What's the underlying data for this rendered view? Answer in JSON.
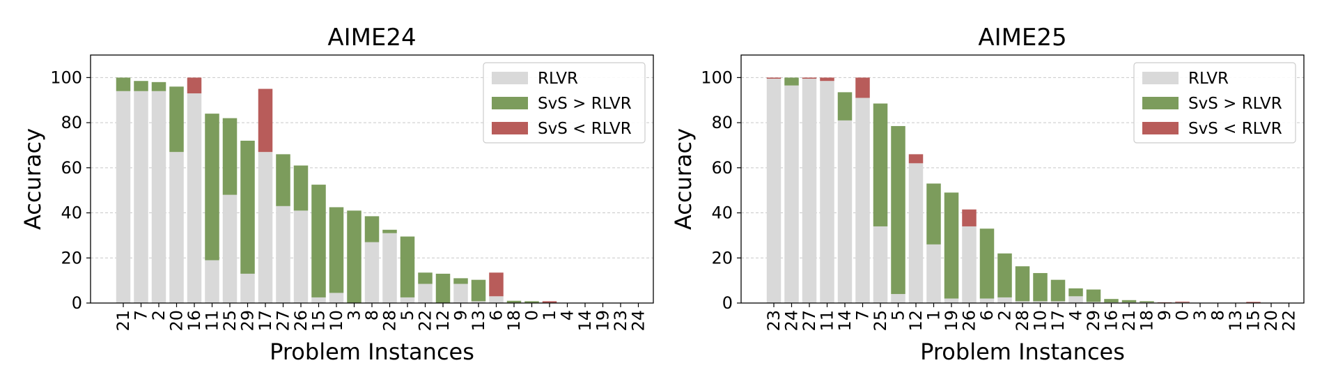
{
  "chart_data": [
    {
      "type": "bar",
      "title": "AIME24",
      "xlabel": "Problem Instances",
      "ylabel": "Accuracy",
      "ylim": [
        0,
        110
      ],
      "yticks": [
        0,
        20,
        40,
        60,
        80,
        100
      ],
      "grid": "y-dashed",
      "legend_position": "top-right",
      "categories": [
        "21",
        "7",
        "2",
        "20",
        "16",
        "11",
        "25",
        "29",
        "17",
        "27",
        "26",
        "15",
        "10",
        "3",
        "8",
        "28",
        "5",
        "22",
        "12",
        "9",
        "13",
        "6",
        "18",
        "0",
        "1",
        "4",
        "14",
        "19",
        "23",
        "24"
      ],
      "series": [
        {
          "name": "RLVR",
          "color": "#d9d9d9",
          "values": [
            94,
            94,
            94,
            67,
            93,
            19,
            48,
            13,
            67,
            43,
            41,
            2.5,
            4.5,
            0,
            27,
            31,
            2.5,
            8.5,
            0,
            8.5,
            0.8,
            3,
            0,
            0,
            0,
            0,
            0,
            0,
            0,
            0
          ]
        },
        {
          "name": "SvS > RLVR",
          "color": "#7c9c5c",
          "values": [
            6,
            4.5,
            4,
            29,
            0,
            65,
            34,
            59,
            0,
            23,
            20,
            50,
            38,
            41,
            11.5,
            1.5,
            27,
            5,
            13,
            2.5,
            9.5,
            0,
            1,
            0.8,
            0,
            0,
            0,
            0,
            0,
            0
          ]
        },
        {
          "name": "SvS < RLVR",
          "color": "#b85c5a",
          "values": [
            0,
            0,
            0,
            0,
            7,
            0,
            0,
            0,
            28,
            0,
            0,
            0,
            0,
            0,
            0,
            0,
            0,
            0,
            0,
            0,
            0,
            10.5,
            0,
            0,
            0.8,
            0,
            0,
            0,
            0,
            0
          ]
        }
      ]
    },
    {
      "type": "bar",
      "title": "AIME25",
      "xlabel": "Problem Instances",
      "ylabel": "Accuracy",
      "ylim": [
        0,
        110
      ],
      "yticks": [
        0,
        20,
        40,
        60,
        80,
        100
      ],
      "grid": "y-dashed",
      "legend_position": "top-right",
      "categories": [
        "23",
        "24",
        "27",
        "11",
        "14",
        "7",
        "25",
        "5",
        "12",
        "1",
        "19",
        "26",
        "6",
        "2",
        "28",
        "10",
        "17",
        "4",
        "29",
        "16",
        "21",
        "18",
        "9",
        "0",
        "3",
        "8",
        "13",
        "15",
        "20",
        "22"
      ],
      "series": [
        {
          "name": "RLVR",
          "color": "#d9d9d9",
          "values": [
            99.5,
            96.5,
            99.5,
            98.5,
            81,
            91,
            34,
            4,
            62,
            26,
            2,
            34,
            2,
            2.5,
            0.8,
            0.8,
            0.8,
            3,
            0.5,
            0.3,
            0.3,
            0.3,
            0,
            0.3,
            0,
            0,
            0,
            0,
            0,
            0
          ]
        },
        {
          "name": "SvS > RLVR",
          "color": "#7c9c5c",
          "values": [
            0,
            3.5,
            0,
            0,
            12.5,
            0,
            54.5,
            74.5,
            0,
            27,
            47,
            0,
            31,
            19.5,
            15.5,
            12.5,
            9.5,
            3.5,
            5.5,
            1.5,
            1,
            0.5,
            0,
            0,
            0,
            0,
            0,
            0,
            0,
            0
          ]
        },
        {
          "name": "SvS < RLVR",
          "color": "#b85c5a",
          "values": [
            0.5,
            0,
            0.5,
            1.5,
            0,
            9,
            0,
            0,
            4,
            0,
            0,
            7.5,
            0,
            0,
            0,
            0,
            0,
            0,
            0,
            0,
            0,
            0,
            0.3,
            0.3,
            0,
            0,
            0,
            0.5,
            0,
            0
          ]
        }
      ]
    }
  ]
}
